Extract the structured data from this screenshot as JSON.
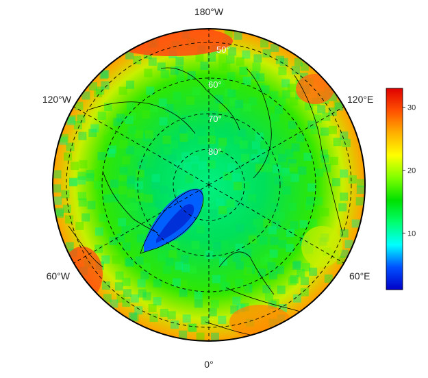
{
  "map": {
    "projection": "north-polar-stereographic",
    "longitude_labels": [
      "180°W",
      "120°E",
      "60°E",
      "0°",
      "60°W",
      "120°W"
    ],
    "latitude_labels": [
      "50°",
      "60°",
      "70°",
      "80°"
    ],
    "grid": "dashed"
  },
  "colorbar": {
    "ticks": [
      "10",
      "20",
      "30"
    ],
    "range": [
      1,
      33
    ],
    "colors": [
      "#0000c8",
      "#0050ff",
      "#00ffff",
      "#00ff70",
      "#00e000",
      "#80ff00",
      "#ffff00",
      "#ffb000",
      "#ff5000",
      "#e00000"
    ]
  },
  "colors": {
    "background": "#ffffff",
    "outline": "#000000"
  }
}
